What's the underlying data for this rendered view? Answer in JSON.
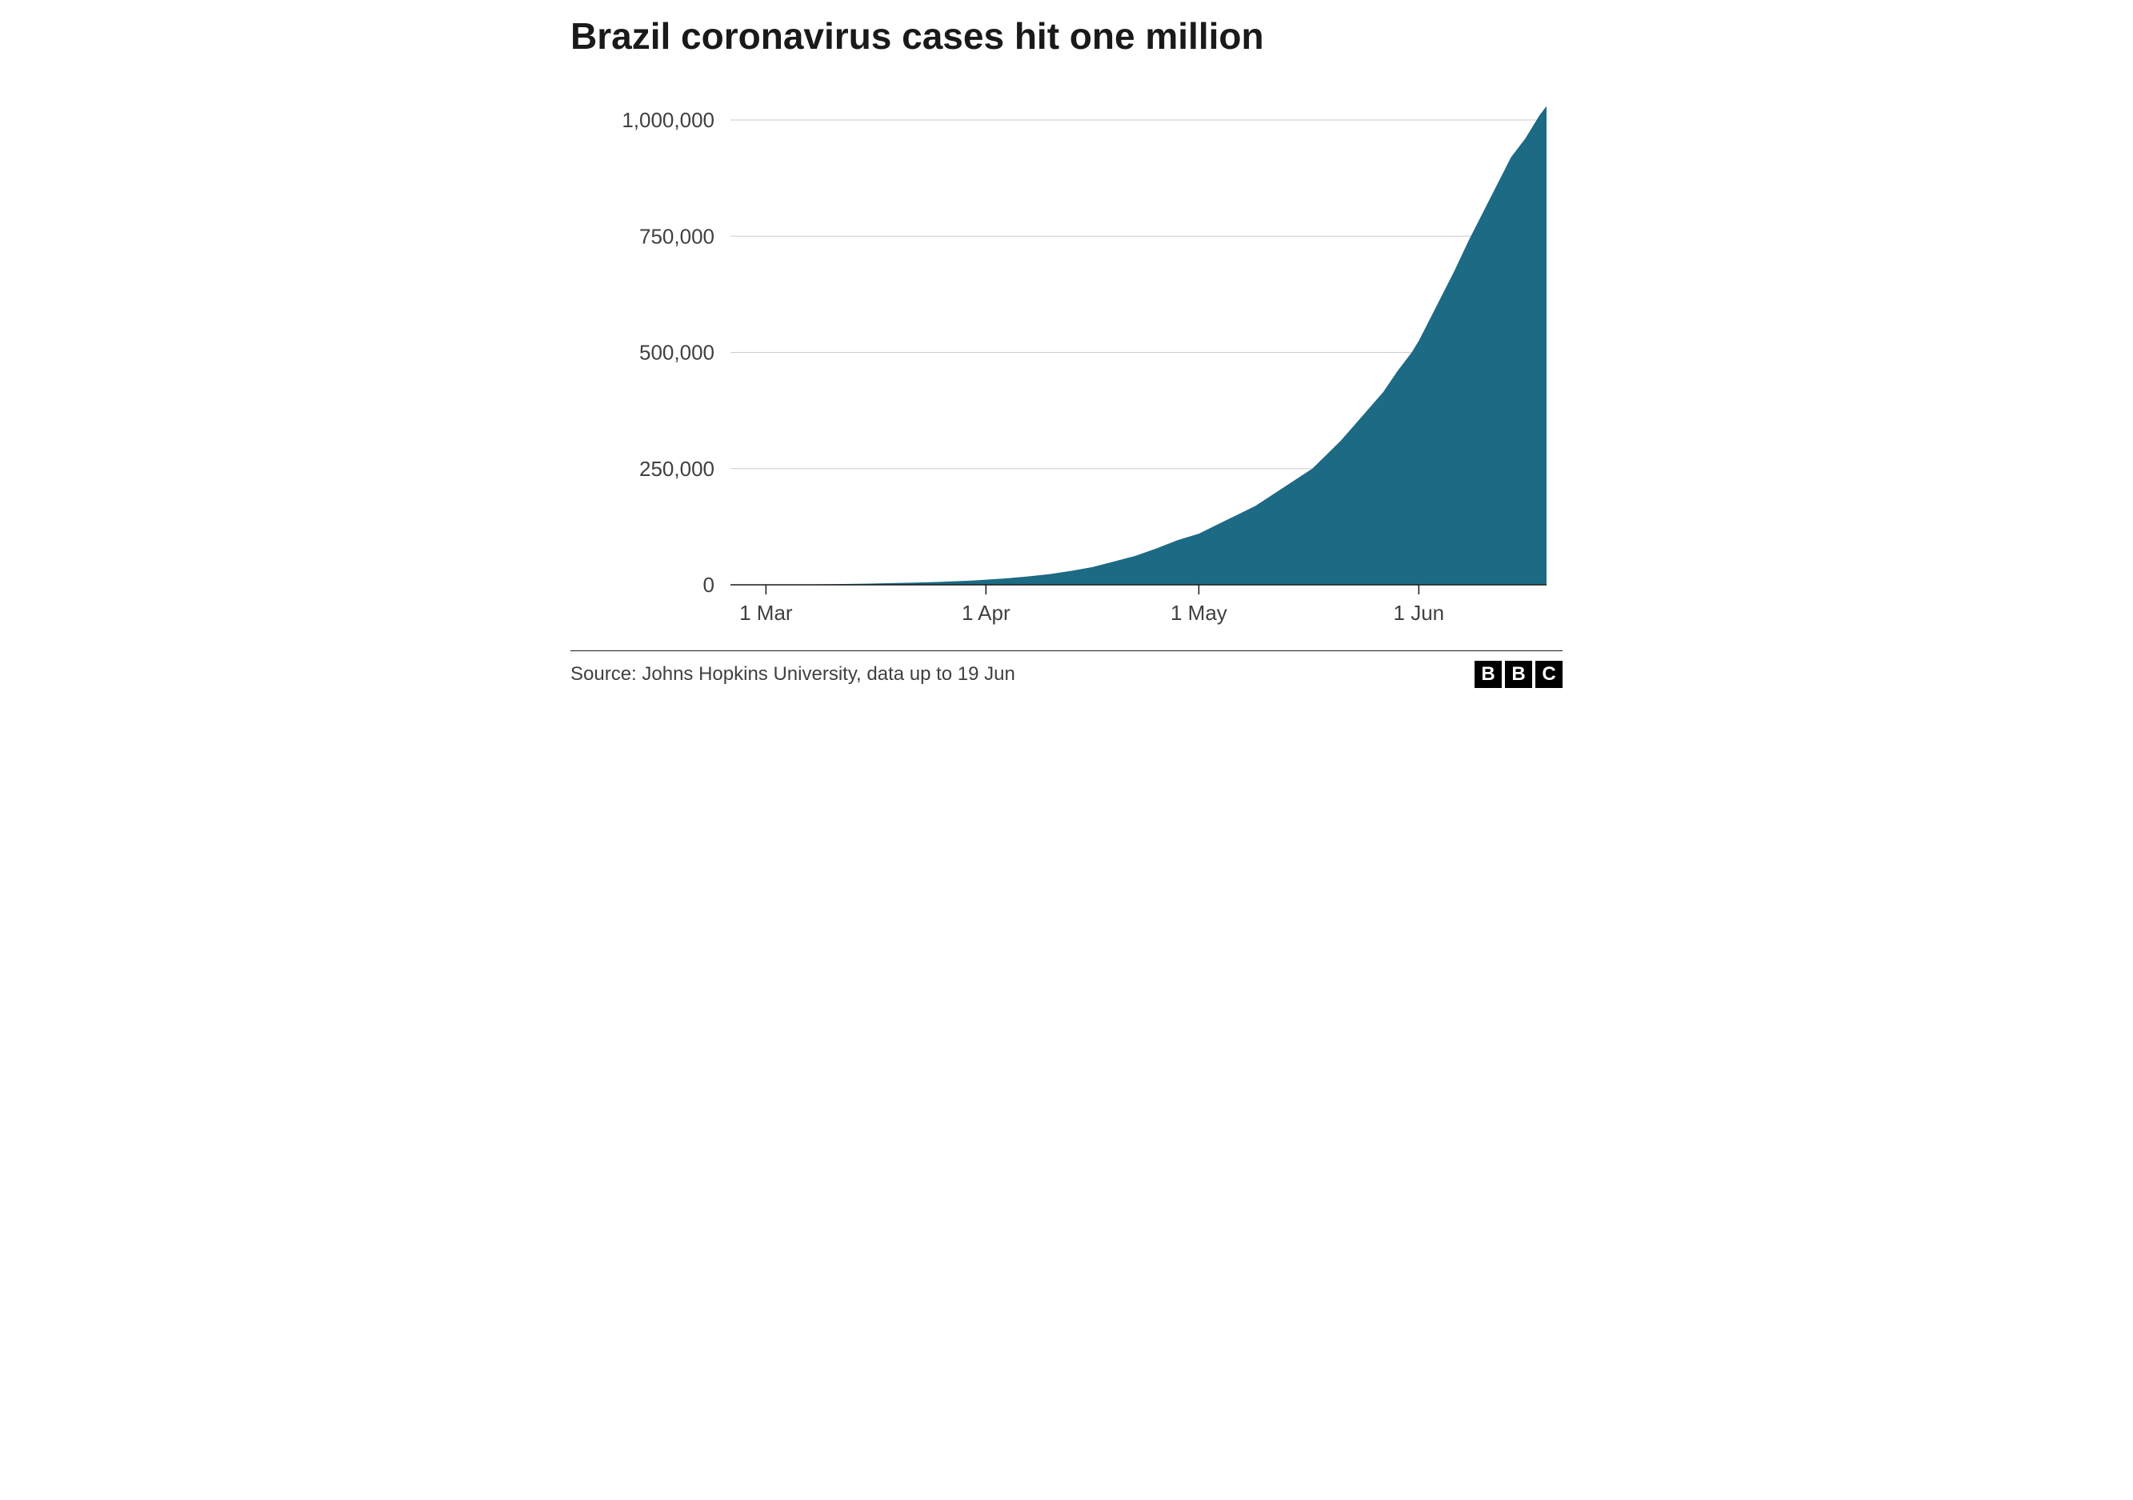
{
  "chart": {
    "type": "area",
    "title": "Brazil coronavirus cases hit one million",
    "title_fontsize": 46,
    "title_color": "#1a1a1a",
    "background_color": "#ffffff",
    "area_fill_color": "#1c6a84",
    "grid_color": "#cccccc",
    "axis_line_color": "#1a1a1a",
    "axis_label_color": "#404040",
    "axis_label_fontsize": 26,
    "y_axis": {
      "min": 0,
      "max": 1050000,
      "ticks": [
        0,
        250000,
        500000,
        750000,
        1000000
      ],
      "tick_labels": [
        "0",
        "250,000",
        "500,000",
        "750,000",
        "1,000,000"
      ]
    },
    "x_axis": {
      "start_day": 56,
      "end_day": 171,
      "ticks": [
        61,
        92,
        122,
        153
      ],
      "tick_labels": [
        "1 Mar",
        "1 Apr",
        "1 May",
        "1 Jun"
      ]
    },
    "series": [
      {
        "day": 56,
        "value": 0
      },
      {
        "day": 60,
        "value": 200
      },
      {
        "day": 65,
        "value": 600
      },
      {
        "day": 70,
        "value": 1200
      },
      {
        "day": 75,
        "value": 2400
      },
      {
        "day": 80,
        "value": 4000
      },
      {
        "day": 85,
        "value": 6000
      },
      {
        "day": 90,
        "value": 9000
      },
      {
        "day": 92,
        "value": 11000
      },
      {
        "day": 95,
        "value": 14000
      },
      {
        "day": 98,
        "value": 18000
      },
      {
        "day": 101,
        "value": 23000
      },
      {
        "day": 104,
        "value": 30000
      },
      {
        "day": 107,
        "value": 38000
      },
      {
        "day": 110,
        "value": 50000
      },
      {
        "day": 113,
        "value": 62000
      },
      {
        "day": 116,
        "value": 78000
      },
      {
        "day": 119,
        "value": 96000
      },
      {
        "day": 122,
        "value": 110000
      },
      {
        "day": 124,
        "value": 125000
      },
      {
        "day": 126,
        "value": 140000
      },
      {
        "day": 128,
        "value": 155000
      },
      {
        "day": 130,
        "value": 170000
      },
      {
        "day": 132,
        "value": 190000
      },
      {
        "day": 134,
        "value": 210000
      },
      {
        "day": 136,
        "value": 230000
      },
      {
        "day": 138,
        "value": 250000
      },
      {
        "day": 140,
        "value": 280000
      },
      {
        "day": 142,
        "value": 310000
      },
      {
        "day": 144,
        "value": 345000
      },
      {
        "day": 146,
        "value": 380000
      },
      {
        "day": 148,
        "value": 415000
      },
      {
        "day": 150,
        "value": 460000
      },
      {
        "day": 152,
        "value": 500000
      },
      {
        "day": 153,
        "value": 525000
      },
      {
        "day": 154,
        "value": 555000
      },
      {
        "day": 156,
        "value": 615000
      },
      {
        "day": 158,
        "value": 675000
      },
      {
        "day": 160,
        "value": 740000
      },
      {
        "day": 162,
        "value": 800000
      },
      {
        "day": 164,
        "value": 860000
      },
      {
        "day": 166,
        "value": 920000
      },
      {
        "day": 168,
        "value": 960000
      },
      {
        "day": 170,
        "value": 1010000
      },
      {
        "day": 171,
        "value": 1030000
      }
    ]
  },
  "footer": {
    "source_text": "Source: Johns Hopkins University, data up to 19 Jun",
    "source_fontsize": 24,
    "source_color": "#404040",
    "divider_color": "#1a1a1a",
    "logo_letters": [
      "B",
      "B",
      "C"
    ],
    "logo_background": "#000000",
    "logo_text_color": "#ffffff"
  }
}
